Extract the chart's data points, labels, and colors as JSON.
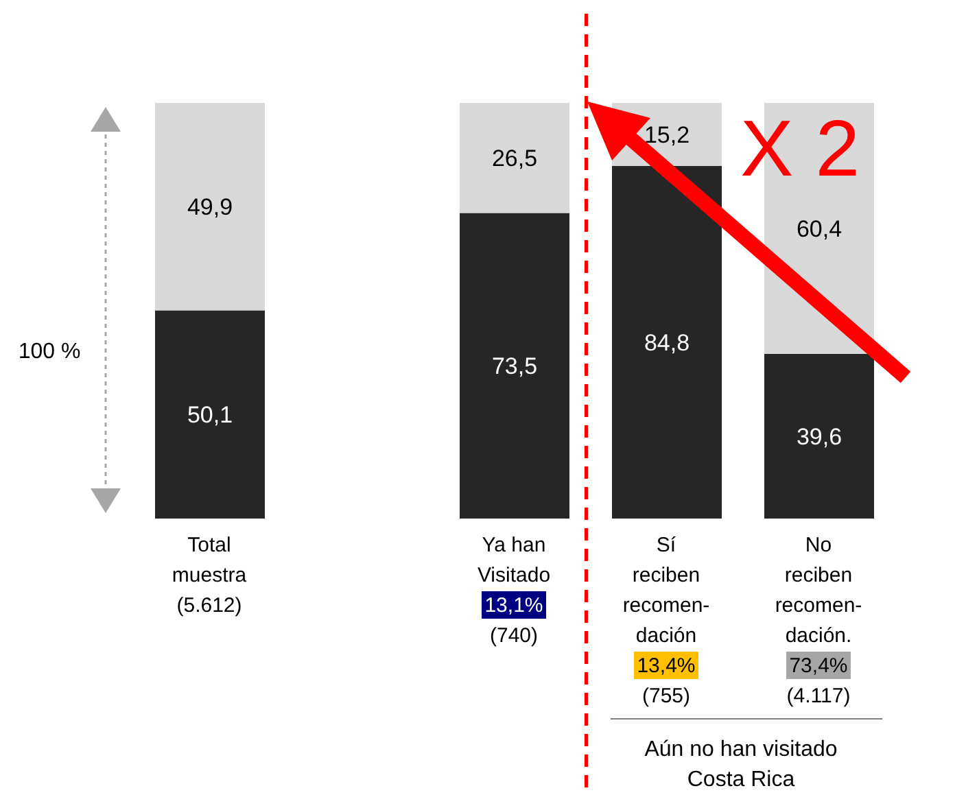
{
  "chart_data": {
    "type": "bar",
    "stacked": true,
    "categories": [
      "Total\nmuestra\n(5.612)",
      null,
      "Ya han\nVisitado\n13,1%\n(740)",
      "Sí\nreciben\nrecomen-\ndación\n13,4%\n(755)",
      "No\nreciben\nrecomen-\ndación.\n73,4%\n(4.117)"
    ],
    "series": [
      {
        "color": "#262626",
        "values": [
          50.1,
          null,
          73.5,
          84.8,
          39.6
        ],
        "value_labels": [
          "50,1",
          null,
          "73,5",
          "84,8",
          "39,6"
        ]
      },
      {
        "color": "#d9d9d9",
        "values": [
          49.9,
          null,
          26.5,
          15.2,
          60.4
        ],
        "value_labels": [
          "49,9",
          null,
          "26,5",
          "15,2",
          "60,4"
        ]
      }
    ],
    "annotations": [
      "100 %",
      "X 2",
      "Aún no han visitado\nCosta Rica"
    ]
  }
}
